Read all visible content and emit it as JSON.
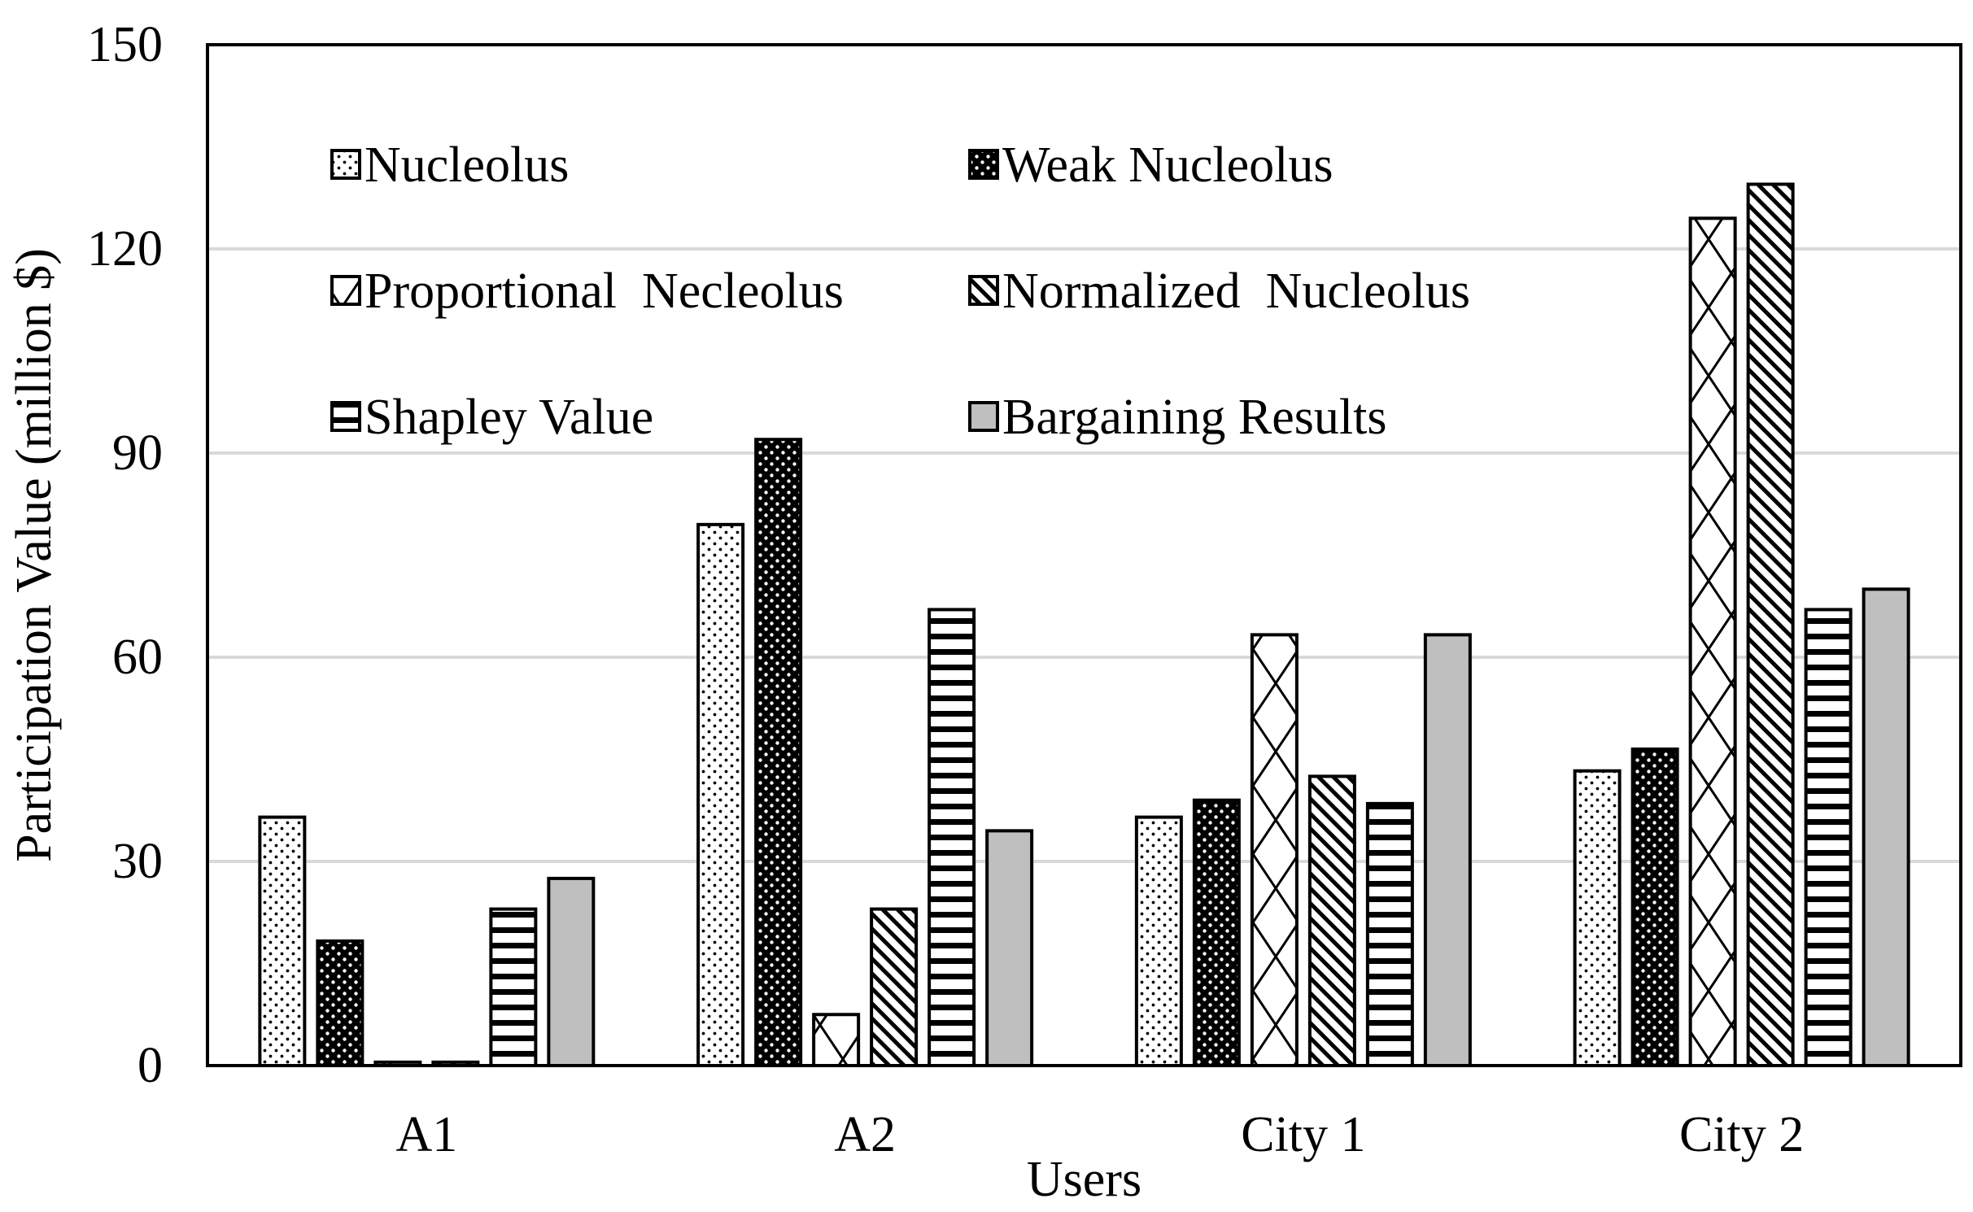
{
  "chart_data": {
    "type": "bar",
    "title": "",
    "xlabel": "Users",
    "ylabel": "Participation  Value (million $)",
    "ylim": [
      0,
      150
    ],
    "yticks": [
      0,
      30,
      60,
      90,
      120,
      150
    ],
    "ytick_labels": [
      "0",
      "30",
      "60",
      "90",
      "120",
      "150"
    ],
    "grid": "horizontal",
    "legend_position": "top-left inside",
    "categories": [
      "A1",
      "A2",
      "City 1",
      "City 2"
    ],
    "series": [
      {
        "name": "Nucleolus",
        "pattern": "dots-light",
        "values": [
          36.5,
          79.5,
          36.5,
          43.3
        ]
      },
      {
        "name": "Weak Nucleolus",
        "pattern": "dots-dark",
        "values": [
          18.3,
          92.0,
          39.0,
          46.5
        ]
      },
      {
        "name": "Proportional  Necleolus",
        "pattern": "diamond",
        "values": [
          0.5,
          7.5,
          63.3,
          124.5
        ]
      },
      {
        "name": "Normalized  Nucleolus",
        "pattern": "diagonal",
        "values": [
          0.5,
          23.0,
          42.5,
          129.5
        ]
      },
      {
        "name": "Shapley Value",
        "pattern": "horizontal",
        "values": [
          23.0,
          67.0,
          38.5,
          67.0
        ]
      },
      {
        "name": "Bargaining Results",
        "pattern": "gray",
        "values": [
          27.5,
          34.5,
          63.3,
          70.0
        ]
      }
    ],
    "colors": {
      "axis": "#000000",
      "grid": "#d9d9d9",
      "gray_fill": "#bfbfbf",
      "bar_stroke": "#000000"
    }
  }
}
